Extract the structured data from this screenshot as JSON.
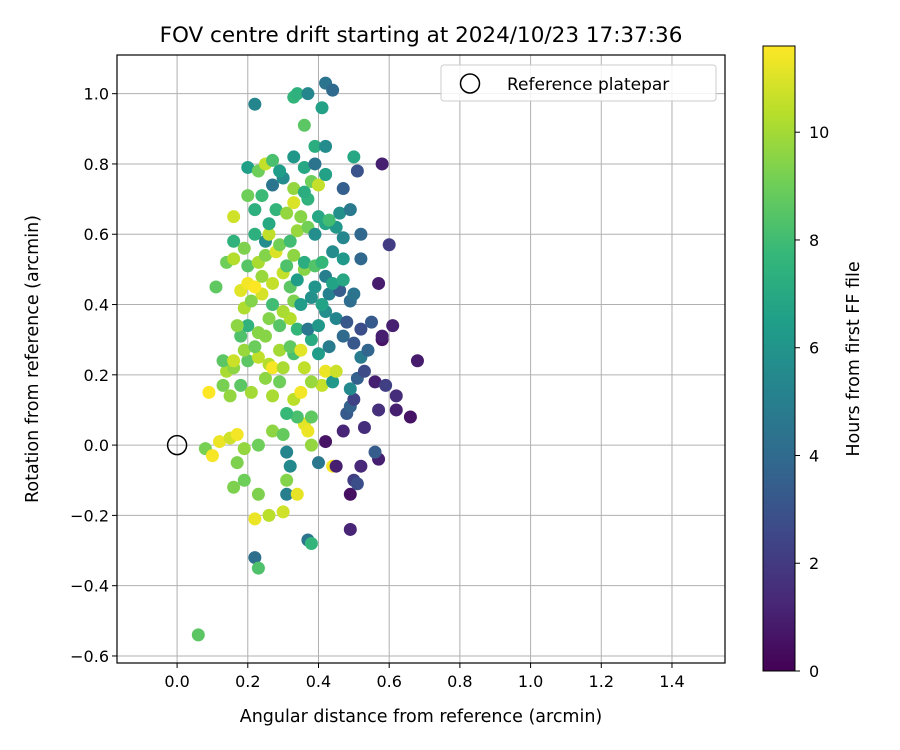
{
  "chart_data": {
    "type": "scatter",
    "title": "FOV centre drift starting at 2024/10/23 17:37:36",
    "xlabel": "Angular distance from reference (arcmin)",
    "ylabel": "Rotation from reference (arcmin)",
    "xlim": [
      -0.17,
      1.55
    ],
    "ylim": [
      -0.62,
      1.11
    ],
    "xticks": [
      0.0,
      0.2,
      0.4,
      0.6,
      0.8,
      1.0,
      1.2,
      1.4
    ],
    "xtick_labels": [
      "0.0",
      "0.2",
      "0.4",
      "0.6",
      "0.8",
      "1.0",
      "1.2",
      "1.4"
    ],
    "yticks": [
      -0.6,
      -0.4,
      -0.2,
      0.0,
      0.2,
      0.4,
      0.6,
      0.8,
      1.0
    ],
    "ytick_labels": [
      "−0.6",
      "−0.4",
      "−0.2",
      "0.0",
      "0.2",
      "0.4",
      "0.6",
      "0.8",
      "1.0"
    ],
    "grid": true,
    "legend": {
      "label": "Reference platepar",
      "position": "top-right"
    },
    "reference_point": {
      "x": 0.0,
      "y": 0.0
    },
    "colorbar": {
      "label": "Hours from first FF file",
      "min": 0,
      "max": 11.6,
      "ticks": [
        0,
        2,
        4,
        6,
        8,
        10
      ],
      "tick_labels": [
        "0",
        "2",
        "4",
        "6",
        "8",
        "10"
      ],
      "colormap": "viridis",
      "colormap_stops": [
        "#440154",
        "#482878",
        "#3e4989",
        "#31688e",
        "#26828e",
        "#1f9e89",
        "#35b779",
        "#6ece58",
        "#b5de2b",
        "#fde725"
      ]
    },
    "points": [
      [
        0.06,
        -0.54,
        8.6
      ],
      [
        0.22,
        -0.32,
        4.2
      ],
      [
        0.23,
        -0.35,
        8.3
      ],
      [
        0.37,
        -0.27,
        4.5
      ],
      [
        0.38,
        -0.28,
        7.6
      ],
      [
        0.49,
        -0.24,
        1.2
      ],
      [
        0.22,
        -0.21,
        11.3
      ],
      [
        0.26,
        -0.2,
        10.4
      ],
      [
        0.3,
        -0.19,
        10.8
      ],
      [
        0.31,
        -0.14,
        5.0
      ],
      [
        0.34,
        -0.14,
        11.2
      ],
      [
        0.49,
        -0.14,
        0.5
      ],
      [
        0.5,
        -0.1,
        2.2
      ],
      [
        0.51,
        -0.11,
        2.8
      ],
      [
        0.16,
        -0.12,
        9.3
      ],
      [
        0.19,
        -0.1,
        9.0
      ],
      [
        0.23,
        -0.14,
        9.3
      ],
      [
        0.31,
        -0.1,
        9.4
      ],
      [
        0.32,
        -0.06,
        5.5
      ],
      [
        0.44,
        -0.06,
        11.5
      ],
      [
        0.45,
        -0.06,
        1.0
      ],
      [
        0.4,
        -0.05,
        4.6
      ],
      [
        0.52,
        -0.06,
        1.3
      ],
      [
        0.57,
        -0.04,
        1.0
      ],
      [
        0.56,
        -0.02,
        3.4
      ],
      [
        0.19,
        -0.01,
        9.7
      ],
      [
        0.08,
        -0.01,
        9.2
      ],
      [
        0.17,
        -0.05,
        9.3
      ],
      [
        0.1,
        -0.03,
        11.5
      ],
      [
        0.23,
        0.0,
        9.0
      ],
      [
        0.31,
        -0.02,
        5.3
      ],
      [
        0.38,
        0.0,
        9.7
      ],
      [
        0.42,
        0.01,
        0.6
      ],
      [
        0.47,
        0.04,
        1.2
      ],
      [
        0.53,
        0.05,
        1.5
      ],
      [
        0.12,
        0.01,
        11.3
      ],
      [
        0.15,
        0.02,
        10.8
      ],
      [
        0.17,
        0.03,
        11.4
      ],
      [
        0.27,
        0.04,
        9.6
      ],
      [
        0.3,
        0.03,
        8.8
      ],
      [
        0.36,
        0.06,
        11.1
      ],
      [
        0.37,
        0.04,
        11.3
      ],
      [
        0.38,
        0.08,
        8.7
      ],
      [
        0.34,
        0.08,
        8.2
      ],
      [
        0.31,
        0.09,
        7.8
      ],
      [
        0.48,
        0.09,
        3.3
      ],
      [
        0.49,
        0.11,
        3.6
      ],
      [
        0.5,
        0.13,
        2.3
      ],
      [
        0.57,
        0.1,
        1.6
      ],
      [
        0.62,
        0.1,
        1.0
      ],
      [
        0.66,
        0.08,
        0.6
      ],
      [
        0.09,
        0.15,
        11.6
      ],
      [
        0.13,
        0.17,
        9.2
      ],
      [
        0.15,
        0.14,
        9.7
      ],
      [
        0.18,
        0.17,
        8.6
      ],
      [
        0.21,
        0.15,
        10.0
      ],
      [
        0.25,
        0.19,
        9.6
      ],
      [
        0.27,
        0.14,
        10.1
      ],
      [
        0.29,
        0.18,
        9.0
      ],
      [
        0.33,
        0.13,
        10.4
      ],
      [
        0.35,
        0.15,
        11.4
      ],
      [
        0.41,
        0.17,
        10.6
      ],
      [
        0.44,
        0.18,
        6.2
      ],
      [
        0.49,
        0.16,
        5.5
      ],
      [
        0.51,
        0.19,
        3.5
      ],
      [
        0.53,
        0.21,
        2.7
      ],
      [
        0.56,
        0.18,
        1.0
      ],
      [
        0.59,
        0.17,
        2.2
      ],
      [
        0.62,
        0.14,
        1.5
      ],
      [
        0.14,
        0.21,
        10.1
      ],
      [
        0.16,
        0.22,
        9.6
      ],
      [
        0.2,
        0.24,
        8.6
      ],
      [
        0.23,
        0.25,
        10.5
      ],
      [
        0.26,
        0.23,
        10.3
      ],
      [
        0.27,
        0.22,
        11.5
      ],
      [
        0.3,
        0.22,
        10.1
      ],
      [
        0.33,
        0.26,
        8.2
      ],
      [
        0.36,
        0.22,
        10.5
      ],
      [
        0.38,
        0.18,
        9.8
      ],
      [
        0.42,
        0.21,
        11.3
      ],
      [
        0.45,
        0.21,
        10.7
      ],
      [
        0.52,
        0.25,
        4.8
      ],
      [
        0.54,
        0.27,
        3.8
      ],
      [
        0.58,
        0.3,
        0.6
      ],
      [
        0.61,
        0.34,
        1.0
      ],
      [
        0.68,
        0.24,
        0.9
      ],
      [
        0.13,
        0.24,
        8.6
      ],
      [
        0.16,
        0.24,
        10.7
      ],
      [
        0.19,
        0.27,
        9.8
      ],
      [
        0.22,
        0.28,
        8.9
      ],
      [
        0.25,
        0.31,
        9.5
      ],
      [
        0.29,
        0.27,
        10.0
      ],
      [
        0.32,
        0.28,
        8.7
      ],
      [
        0.35,
        0.27,
        11.1
      ],
      [
        0.38,
        0.3,
        7.1
      ],
      [
        0.4,
        0.26,
        6.4
      ],
      [
        0.43,
        0.28,
        4.8
      ],
      [
        0.47,
        0.31,
        4.0
      ],
      [
        0.5,
        0.29,
        3.2
      ],
      [
        0.55,
        0.35,
        3.3
      ],
      [
        0.58,
        0.31,
        1.0
      ],
      [
        0.18,
        0.31,
        8.3
      ],
      [
        0.2,
        0.34,
        7.5
      ],
      [
        0.23,
        0.32,
        9.5
      ],
      [
        0.26,
        0.36,
        9.4
      ],
      [
        0.29,
        0.34,
        8.5
      ],
      [
        0.32,
        0.36,
        10.3
      ],
      [
        0.34,
        0.33,
        7.7
      ],
      [
        0.37,
        0.33,
        4.6
      ],
      [
        0.4,
        0.34,
        6.1
      ],
      [
        0.42,
        0.38,
        5.7
      ],
      [
        0.45,
        0.36,
        5.3
      ],
      [
        0.48,
        0.35,
        3.2
      ],
      [
        0.52,
        0.33,
        2.8
      ],
      [
        0.17,
        0.34,
        9.6
      ],
      [
        0.19,
        0.39,
        10.2
      ],
      [
        0.21,
        0.41,
        9.4
      ],
      [
        0.24,
        0.43,
        10.9
      ],
      [
        0.27,
        0.4,
        8.0
      ],
      [
        0.3,
        0.38,
        10.1
      ],
      [
        0.33,
        0.41,
        9.3
      ],
      [
        0.35,
        0.4,
        6.4
      ],
      [
        0.38,
        0.42,
        5.8
      ],
      [
        0.41,
        0.4,
        6.7
      ],
      [
        0.43,
        0.43,
        5.1
      ],
      [
        0.46,
        0.44,
        3.4
      ],
      [
        0.49,
        0.41,
        4.1
      ],
      [
        0.11,
        0.45,
        8.7
      ],
      [
        0.18,
        0.44,
        11.1
      ],
      [
        0.2,
        0.46,
        11.4
      ],
      [
        0.22,
        0.45,
        11.6
      ],
      [
        0.24,
        0.48,
        9.8
      ],
      [
        0.27,
        0.46,
        10.6
      ],
      [
        0.3,
        0.49,
        10.6
      ],
      [
        0.32,
        0.45,
        8.6
      ],
      [
        0.34,
        0.47,
        6.4
      ],
      [
        0.36,
        0.5,
        9.5
      ],
      [
        0.39,
        0.45,
        6.0
      ],
      [
        0.42,
        0.48,
        5.0
      ],
      [
        0.44,
        0.46,
        6.7
      ],
      [
        0.47,
        0.47,
        6.9
      ],
      [
        0.5,
        0.43,
        4.4
      ],
      [
        0.57,
        0.46,
        0.9
      ],
      [
        0.14,
        0.52,
        9.0
      ],
      [
        0.16,
        0.53,
        10.3
      ],
      [
        0.2,
        0.51,
        8.5
      ],
      [
        0.23,
        0.52,
        10.1
      ],
      [
        0.25,
        0.54,
        9.4
      ],
      [
        0.28,
        0.55,
        11.0
      ],
      [
        0.31,
        0.51,
        8.3
      ],
      [
        0.33,
        0.54,
        9.6
      ],
      [
        0.36,
        0.52,
        7.2
      ],
      [
        0.39,
        0.51,
        8.4
      ],
      [
        0.41,
        0.52,
        7.7
      ],
      [
        0.44,
        0.55,
        5.6
      ],
      [
        0.47,
        0.53,
        6.2
      ],
      [
        0.52,
        0.53,
        3.9
      ],
      [
        0.16,
        0.58,
        7.5
      ],
      [
        0.19,
        0.56,
        9.3
      ],
      [
        0.22,
        0.6,
        7.3
      ],
      [
        0.25,
        0.58,
        5.6
      ],
      [
        0.26,
        0.6,
        10.5
      ],
      [
        0.29,
        0.57,
        9.1
      ],
      [
        0.32,
        0.58,
        8.0
      ],
      [
        0.34,
        0.61,
        9.8
      ],
      [
        0.37,
        0.62,
        9.1
      ],
      [
        0.39,
        0.6,
        5.7
      ],
      [
        0.42,
        0.63,
        6.8
      ],
      [
        0.45,
        0.62,
        6.1
      ],
      [
        0.47,
        0.59,
        5.4
      ],
      [
        0.52,
        0.6,
        3.9
      ],
      [
        0.6,
        0.57,
        2.1
      ],
      [
        0.16,
        0.65,
        10.8
      ],
      [
        0.22,
        0.67,
        7.3
      ],
      [
        0.26,
        0.63,
        7.0
      ],
      [
        0.28,
        0.67,
        7.6
      ],
      [
        0.31,
        0.66,
        9.7
      ],
      [
        0.33,
        0.69,
        11.0
      ],
      [
        0.35,
        0.65,
        9.5
      ],
      [
        0.37,
        0.7,
        7.5
      ],
      [
        0.4,
        0.65,
        6.9
      ],
      [
        0.43,
        0.64,
        8.0
      ],
      [
        0.46,
        0.66,
        5.8
      ],
      [
        0.49,
        0.67,
        4.7
      ],
      [
        0.2,
        0.71,
        9.0
      ],
      [
        0.24,
        0.71,
        7.9
      ],
      [
        0.27,
        0.74,
        4.5
      ],
      [
        0.3,
        0.76,
        5.6
      ],
      [
        0.33,
        0.73,
        9.7
      ],
      [
        0.36,
        0.72,
        7.2
      ],
      [
        0.38,
        0.75,
        9.0
      ],
      [
        0.4,
        0.74,
        10.6
      ],
      [
        0.42,
        0.77,
        6.4
      ],
      [
        0.47,
        0.73,
        3.5
      ],
      [
        0.2,
        0.79,
        6.5
      ],
      [
        0.23,
        0.78,
        9.0
      ],
      [
        0.25,
        0.8,
        10.6
      ],
      [
        0.27,
        0.81,
        8.2
      ],
      [
        0.29,
        0.78,
        6.4
      ],
      [
        0.33,
        0.82,
        6.1
      ],
      [
        0.36,
        0.79,
        6.9
      ],
      [
        0.39,
        0.8,
        4.4
      ],
      [
        0.42,
        0.77,
        6.6
      ],
      [
        0.5,
        0.82,
        6.9
      ],
      [
        0.58,
        0.8,
        1.0
      ],
      [
        0.39,
        0.85,
        7.2
      ],
      [
        0.42,
        0.85,
        5.6
      ],
      [
        0.51,
        0.78,
        3.0
      ],
      [
        0.36,
        0.91,
        8.6
      ],
      [
        0.41,
        0.96,
        6.6
      ],
      [
        0.22,
        0.97,
        5.3
      ],
      [
        0.33,
        0.99,
        7.6
      ],
      [
        0.34,
        1.0,
        7.4
      ],
      [
        0.37,
        1.0,
        5.4
      ],
      [
        0.42,
        1.03,
        4.4
      ],
      [
        0.44,
        1.01,
        4.0
      ]
    ]
  }
}
